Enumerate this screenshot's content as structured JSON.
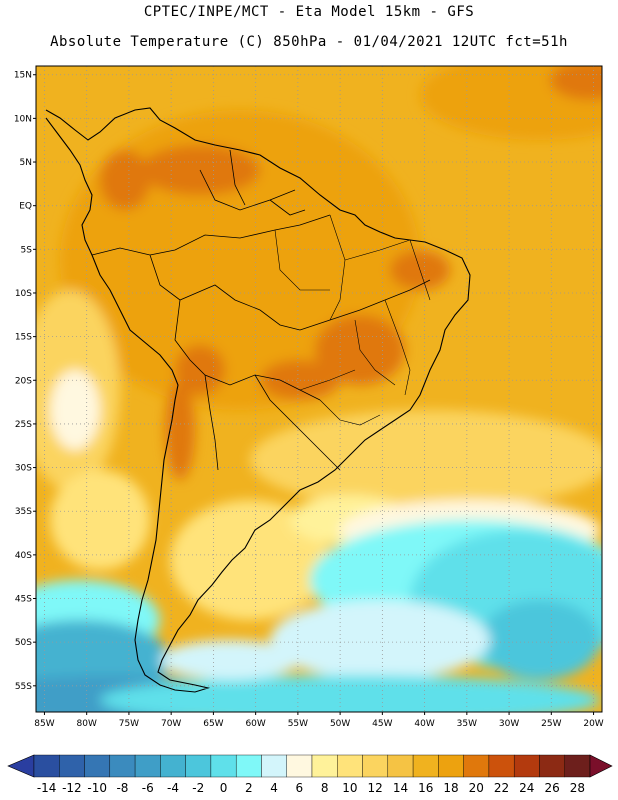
{
  "header": {
    "line1": "CPTEC/INPE/MCT -  Eta Model 15km - GFS",
    "line2": "Absolute Temperature (C) 850hPa - 01/04/2021 12UTC fct=51h"
  },
  "map": {
    "lat_labels": [
      "15N",
      "10N",
      "5N",
      "EQ",
      "5S",
      "10S",
      "15S",
      "20S",
      "25S",
      "30S",
      "35S",
      "40S",
      "45S",
      "50S",
      "55S"
    ],
    "lon_labels": [
      "85W",
      "80W",
      "75W",
      "70W",
      "65W",
      "60W",
      "55W",
      "50W",
      "45W",
      "40W",
      "35W",
      "30W",
      "25W",
      "20W"
    ],
    "lat_values": [
      15,
      10,
      5,
      0,
      -5,
      -10,
      -15,
      -20,
      -25,
      -30,
      -35,
      -40,
      -45,
      -50,
      -55
    ],
    "lon_values": [
      -85,
      -80,
      -75,
      -70,
      -65,
      -60,
      -55,
      -50,
      -45,
      -40,
      -35,
      -30,
      -25,
      -20
    ],
    "extent": {
      "lon_min": -86,
      "lon_max": -19,
      "lat_min": -58,
      "lat_max": 16
    },
    "grid": true
  },
  "colorbar": {
    "labels": [
      "-14",
      "-12",
      "-10",
      "-8",
      "-6",
      "-4",
      "-2",
      "0",
      "2",
      "4",
      "6",
      "8",
      "10",
      "12",
      "14",
      "16",
      "18",
      "20",
      "22",
      "24",
      "26",
      "28"
    ],
    "colors": [
      "#2a4fa0",
      "#2f62aa",
      "#3576b4",
      "#3b8bbe",
      "#3f9ec7",
      "#44b2d0",
      "#4cc6dc",
      "#5fe0ea",
      "#7ff8f8",
      "#d3f5fb",
      "#fff8e0",
      "#fff29a",
      "#ffe37a",
      "#fbd45f",
      "#f5c344",
      "#f0b21f",
      "#eda20f",
      "#e0780c",
      "#cc520c",
      "#b33a0e",
      "#8c2a14",
      "#6d1f1c"
    ],
    "under_color": "#2a3ea0",
    "over_color": "#7a0f2a"
  }
}
